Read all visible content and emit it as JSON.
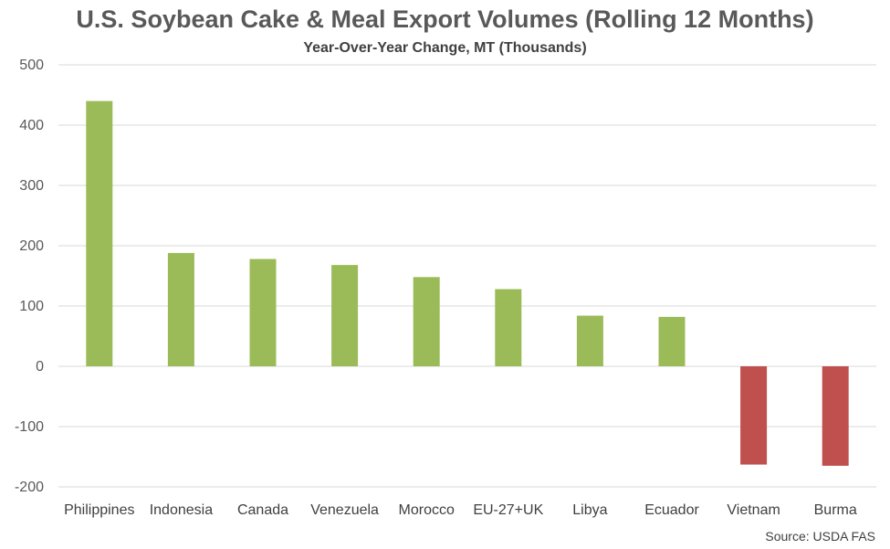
{
  "chart_data": {
    "type": "bar",
    "title": "U.S. Soybean Cake & Meal Export Volumes (Rolling 12 Months)",
    "subtitle": "Year-Over-Year Change, MT (Thousands)",
    "source": "Source: USDA FAS",
    "categories": [
      "Philippines",
      "Indonesia",
      "Canada",
      "Venezuela",
      "Morocco",
      "EU-27+UK",
      "Libya",
      "Ecuador",
      "Vietnam",
      "Burma"
    ],
    "values": [
      440,
      188,
      178,
      168,
      148,
      128,
      84,
      82,
      -163,
      -165
    ],
    "ylim": [
      -200,
      500
    ],
    "yticks": [
      -200,
      -100,
      0,
      100,
      200,
      300,
      400,
      500
    ],
    "grid": true,
    "colors": {
      "positive": "#9BBB59",
      "negative": "#C0504D",
      "grid": "#D9D9D9"
    }
  }
}
